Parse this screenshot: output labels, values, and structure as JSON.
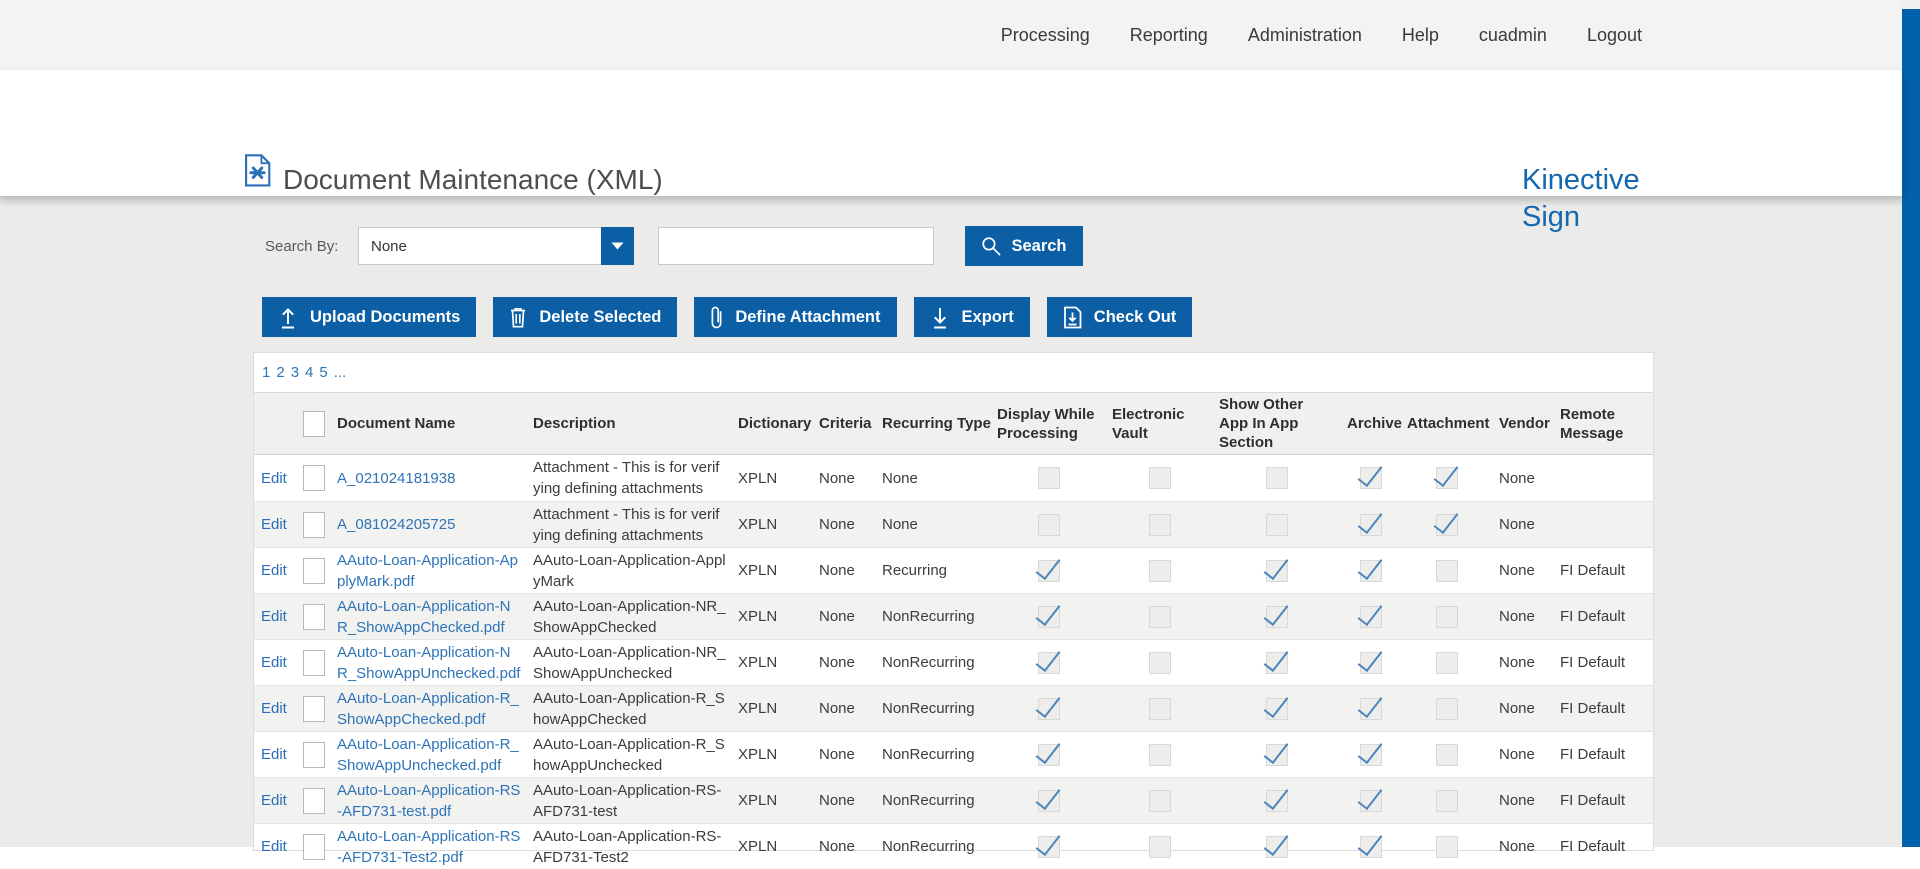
{
  "nav": {
    "items": [
      {
        "label": "Processing"
      },
      {
        "label": "Reporting"
      },
      {
        "label": "Administration"
      },
      {
        "label": "Help"
      },
      {
        "label": "cuadmin"
      },
      {
        "label": "Logout"
      }
    ]
  },
  "header": {
    "title": "Document Maintenance (XML)",
    "icon": "xml-document-icon",
    "brand_line1": "Kinective",
    "brand_line2": "Sign"
  },
  "search": {
    "label": "Search By:",
    "dropdown_value": "None",
    "dropdown_icon": "chevron-down-icon",
    "input_value": "",
    "button_label": "Search",
    "button_icon": "search-icon"
  },
  "toolbar": {
    "buttons": [
      {
        "label": "Upload Documents",
        "icon": "upload-icon"
      },
      {
        "label": "Delete Selected",
        "icon": "trash-icon"
      },
      {
        "label": "Define Attachment",
        "icon": "paperclip-icon"
      },
      {
        "label": "Export",
        "icon": "download-icon"
      },
      {
        "label": "Check Out",
        "icon": "checkout-icon"
      }
    ]
  },
  "pagination": {
    "pages": [
      "1",
      "2",
      "3",
      "4",
      "5",
      "..."
    ]
  },
  "table": {
    "edit_label": "Edit",
    "columns": [
      {
        "key": "edit",
        "label": ""
      },
      {
        "key": "select",
        "label": ""
      },
      {
        "key": "name",
        "label": "Document Name"
      },
      {
        "key": "description",
        "label": "Description"
      },
      {
        "key": "dictionary",
        "label": "Dictionary"
      },
      {
        "key": "criteria",
        "label": "Criteria"
      },
      {
        "key": "recurring",
        "label": "Recurring Type"
      },
      {
        "key": "dwp",
        "label": "Display While Processing"
      },
      {
        "key": "vault",
        "label": "Electronic Vault"
      },
      {
        "key": "showapp",
        "label": "Show Other App In App Section"
      },
      {
        "key": "archive",
        "label": "Archive"
      },
      {
        "key": "attachment",
        "label": "Attachment"
      },
      {
        "key": "vendor",
        "label": "Vendor"
      },
      {
        "key": "remote",
        "label": "Remote Message"
      }
    ],
    "rows": [
      {
        "name": "A_021024181938",
        "description": "Attachment - This is for verifying defining attachments",
        "dictionary": "XPLN",
        "criteria": "None",
        "recurring": "None",
        "dwp": false,
        "vault": false,
        "showapp": false,
        "archive": true,
        "attachment": true,
        "vendor": "None",
        "remote": ""
      },
      {
        "name": "A_081024205725",
        "description": "Attachment - This is for verifying defining attachments",
        "dictionary": "XPLN",
        "criteria": "None",
        "recurring": "None",
        "dwp": false,
        "vault": false,
        "showapp": false,
        "archive": true,
        "attachment": true,
        "vendor": "None",
        "remote": ""
      },
      {
        "name": "AAuto-Loan-Application-ApplyMark.pdf",
        "description": "AAuto-Loan-Application-ApplyMark",
        "dictionary": "XPLN",
        "criteria": "None",
        "recurring": "Recurring",
        "dwp": true,
        "vault": false,
        "showapp": true,
        "archive": true,
        "attachment": false,
        "vendor": "None",
        "remote": "FI Default"
      },
      {
        "name": "AAuto-Loan-Application-NR_ShowAppChecked.pdf",
        "description": "AAuto-Loan-Application-NR_ShowAppChecked",
        "dictionary": "XPLN",
        "criteria": "None",
        "recurring": "NonRecurring",
        "dwp": true,
        "vault": false,
        "showapp": true,
        "archive": true,
        "attachment": false,
        "vendor": "None",
        "remote": "FI Default"
      },
      {
        "name": "AAuto-Loan-Application-NR_ShowAppUnchecked.pdf",
        "description": "AAuto-Loan-Application-NR_ShowAppUnchecked",
        "dictionary": "XPLN",
        "criteria": "None",
        "recurring": "NonRecurring",
        "dwp": true,
        "vault": false,
        "showapp": true,
        "archive": true,
        "attachment": false,
        "vendor": "None",
        "remote": "FI Default"
      },
      {
        "name": "AAuto-Loan-Application-R_ShowAppChecked.pdf",
        "description": "AAuto-Loan-Application-R_ShowAppChecked",
        "dictionary": "XPLN",
        "criteria": "None",
        "recurring": "NonRecurring",
        "dwp": true,
        "vault": false,
        "showapp": true,
        "archive": true,
        "attachment": false,
        "vendor": "None",
        "remote": "FI Default"
      },
      {
        "name": "AAuto-Loan-Application-R_ShowAppUnchecked.pdf",
        "description": "AAuto-Loan-Application-R_ShowAppUnchecked",
        "dictionary": "XPLN",
        "criteria": "None",
        "recurring": "NonRecurring",
        "dwp": true,
        "vault": false,
        "showapp": true,
        "archive": true,
        "attachment": false,
        "vendor": "None",
        "remote": "FI Default"
      },
      {
        "name": "AAuto-Loan-Application-RS-AFD731-test.pdf",
        "description": "AAuto-Loan-Application-RS-AFD731-test",
        "dictionary": "XPLN",
        "criteria": "None",
        "recurring": "NonRecurring",
        "dwp": true,
        "vault": false,
        "showapp": true,
        "archive": true,
        "attachment": false,
        "vendor": "None",
        "remote": "FI Default"
      },
      {
        "name": "AAuto-Loan-Application-RS-AFD731-Test2.pdf",
        "description": "AAuto-Loan-Application-RS-AFD731-Test2",
        "dictionary": "XPLN",
        "criteria": "None",
        "recurring": "NonRecurring",
        "dwp": true,
        "vault": false,
        "showapp": true,
        "archive": true,
        "attachment": false,
        "vendor": "None",
        "remote": "FI Default"
      }
    ]
  },
  "colors": {
    "accent": "#0d5fa5",
    "link": "#2e74b6",
    "checkmark": "#4d84ba",
    "brand": "#1567ae",
    "scrollbar": "#0060aa"
  }
}
